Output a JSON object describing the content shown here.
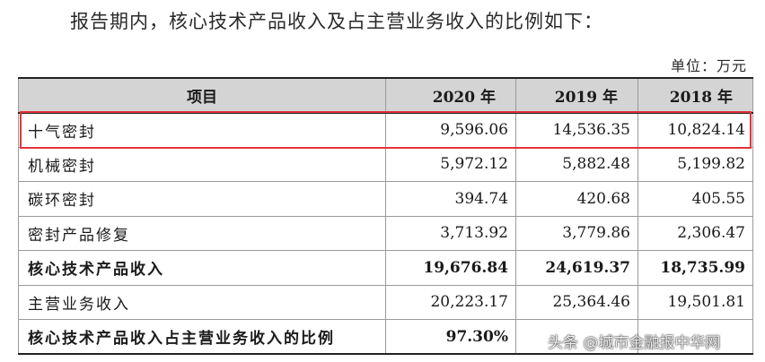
{
  "intro_text": "报告期内，核心技术产品收入及占主营业务收入的比例如下：",
  "unit_text": "单位：万元",
  "table": {
    "headers": [
      "项目",
      "2020 年",
      "2019 年",
      "2018 年"
    ],
    "rows": [
      {
        "label": "十气密封",
        "v2020": "9,596.06",
        "v2019": "14,536.35",
        "v2018": "10,824.14"
      },
      {
        "label": "机械密封",
        "v2020": "5,972.12",
        "v2019": "5,882.48",
        "v2018": "5,199.82"
      },
      {
        "label": "碳环密封",
        "v2020": "394.74",
        "v2019": "420.68",
        "v2018": "405.55"
      },
      {
        "label": "密封产品修复",
        "v2020": "3,713.92",
        "v2019": "3,779.86",
        "v2018": "2,306.47"
      },
      {
        "label": "核心技术产品收入",
        "v2020": "19,676.84",
        "v2019": "24,619.37",
        "v2018": "18,735.99"
      },
      {
        "label": "主营业务收入",
        "v2020": "20,223.17",
        "v2019": "25,364.46",
        "v2018": "19,501.81"
      },
      {
        "label": "核心技术产品收入占主营业务收入的比例",
        "v2020": "97.30%",
        "v2019": "",
        "v2018": ""
      }
    ]
  },
  "watermark": "头条 @城市金融报中华网",
  "colors": {
    "highlight": "#e2323a",
    "header_bg": "#d4d4d4"
  }
}
